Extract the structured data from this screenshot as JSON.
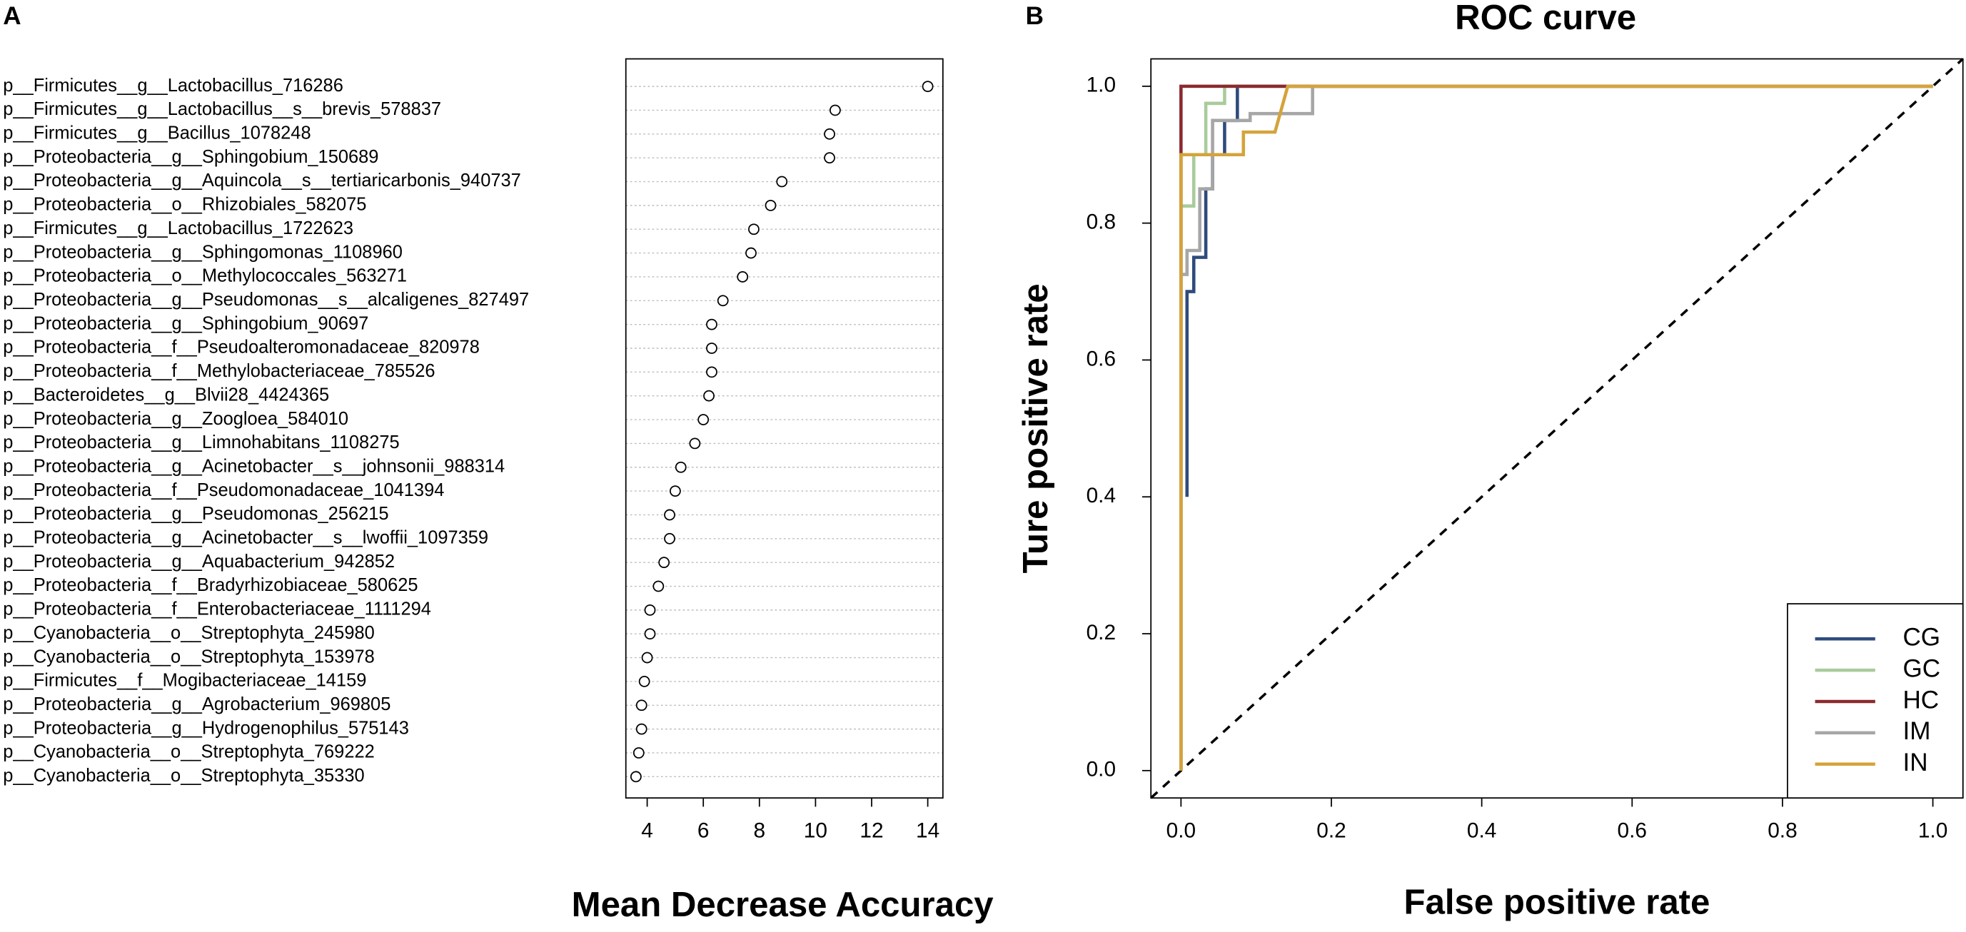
{
  "chart_data": [
    {
      "type": "dot",
      "panel": "A",
      "xlabel": "Mean Decrease Accuracy",
      "categories": [
        "p__Firmicutes__g__Lactobacillus_716286",
        "p__Firmicutes__g__Lactobacillus__s__brevis_578837",
        "p__Firmicutes__g__Bacillus_1078248",
        "p__Proteobacteria__g__Sphingobium_150689",
        "p__Proteobacteria__g__Aquincola__s__tertiaricarbonis_940737",
        "p__Proteobacteria__o__Rhizobiales_582075",
        "p__Firmicutes__g__Lactobacillus_1722623",
        "p__Proteobacteria__g__Sphingomonas_1108960",
        "p__Proteobacteria__o__Methylococcales_563271",
        "p__Proteobacteria__g__Pseudomonas__s__alcaligenes_827497",
        "p__Proteobacteria__g__Sphingobium_90697",
        "p__Proteobacteria__f__Pseudoalteromonadaceae_820978",
        "p__Proteobacteria__f__Methylobacteriaceae_785526",
        "p__Bacteroidetes__g__Blvii28_4424365",
        "p__Proteobacteria__g__Zoogloea_584010",
        "p__Proteobacteria__g__Limnohabitans_1108275",
        "p__Proteobacteria__g__Acinetobacter__s__johnsonii_988314",
        "p__Proteobacteria__f__Pseudomonadaceae_1041394",
        "p__Proteobacteria__g__Pseudomonas_256215",
        "p__Proteobacteria__g__Acinetobacter__s__lwoffii_1097359",
        "p__Proteobacteria__g__Aquabacterium_942852",
        "p__Proteobacteria__f__Bradyrhizobiaceae_580625",
        "p__Proteobacteria__f__Enterobacteriaceae_1111294",
        "p__Cyanobacteria__o__Streptophyta_245980",
        "p__Cyanobacteria__o__Streptophyta_153978",
        "p__Firmicutes__f__Mogibacteriaceae_14159",
        "p__Proteobacteria__g__Agrobacterium_969805",
        "p__Proteobacteria__g__Hydrogenophilus_575143",
        "p__Cyanobacteria__o__Streptophyta_769222",
        "p__Cyanobacteria__o__Streptophyta_35330"
      ],
      "values": [
        14.0,
        10.7,
        10.5,
        10.5,
        8.8,
        8.4,
        7.8,
        7.7,
        7.4,
        6.7,
        6.3,
        6.3,
        6.3,
        6.2,
        6.0,
        5.7,
        5.2,
        5.0,
        4.8,
        4.8,
        4.6,
        4.4,
        4.1,
        4.1,
        4.0,
        3.9,
        3.8,
        3.8,
        3.7,
        3.6
      ],
      "xlim": [
        3.24,
        14.54
      ],
      "xticks": [
        4,
        6,
        8,
        10,
        12,
        14
      ],
      "grid": true
    },
    {
      "type": "line",
      "panel": "B",
      "title": "ROC curve",
      "xlabel": "False positive rate",
      "ylabel": "Ture positive rate",
      "xlim": [
        -0.04,
        1.04
      ],
      "ylim": [
        -0.04,
        1.04
      ],
      "xticks": [
        {
          "value": 0,
          "label": "0.0"
        },
        {
          "value": 0.2,
          "label": "0.2"
        },
        {
          "value": 0.4,
          "label": "0.4"
        },
        {
          "value": 0.6,
          "label": "0.6"
        },
        {
          "value": 0.8,
          "label": "0.8"
        },
        {
          "value": 1,
          "label": "1.0"
        }
      ],
      "yticks": [
        {
          "value": 0,
          "label": "0.0"
        },
        {
          "value": 0.2,
          "label": "0.2"
        },
        {
          "value": 0.4,
          "label": "0.4"
        },
        {
          "value": 0.6,
          "label": "0.6"
        },
        {
          "value": 0.8,
          "label": "0.8"
        },
        {
          "value": 1,
          "label": "1.0"
        }
      ],
      "legend": "bottomright",
      "diagonal": true,
      "series": [
        {
          "name": "CG",
          "color": "#2f4b7c",
          "x": [
            0.008,
            0.008,
            0.017,
            0.017,
            0.033,
            0.033,
            0.042,
            0.042,
            0.058,
            0.058,
            0.075,
            0.075,
            1
          ],
          "values": [
            0.4,
            0.7,
            0.7,
            0.75,
            0.75,
            0.85,
            0.85,
            0.9,
            0.9,
            0.95,
            0.95,
            1,
            1
          ]
        },
        {
          "name": "GC",
          "color": "#a9cb9c",
          "x": [
            0,
            0,
            0.017,
            0.017,
            0.033,
            0.033,
            0.058,
            0.058,
            1
          ],
          "values": [
            0,
            0.825,
            0.825,
            0.9,
            0.9,
            0.975,
            0.975,
            1,
            1
          ]
        },
        {
          "name": "HC",
          "color": "#8b2a2e",
          "x": [
            0,
            0,
            1
          ],
          "values": [
            0,
            1,
            1
          ]
        },
        {
          "name": "IM",
          "color": "#a6a6a6",
          "x": [
            0,
            0,
            0.008,
            0.008,
            0.025,
            0.025,
            0.042,
            0.042,
            0.092,
            0.092,
            0.175,
            0.175,
            1
          ],
          "values": [
            0,
            0.725,
            0.725,
            0.76,
            0.76,
            0.85,
            0.85,
            0.95,
            0.95,
            0.96,
            0.96,
            1,
            1
          ]
        },
        {
          "name": "IN",
          "color": "#d4a33b",
          "x": [
            0,
            0,
            0.083,
            0.083,
            0.125,
            0.142,
            1
          ],
          "values": [
            0,
            0.9,
            0.9,
            0.933,
            0.933,
            1,
            1
          ]
        }
      ]
    }
  ]
}
